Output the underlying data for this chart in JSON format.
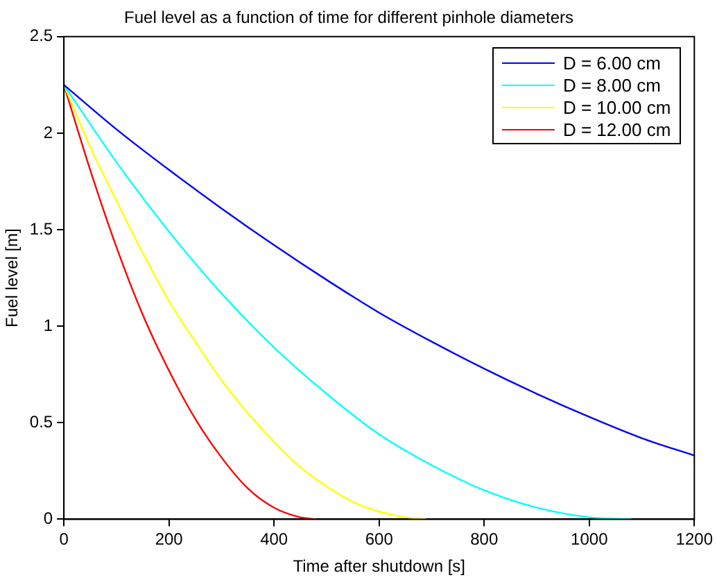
{
  "chart_data": {
    "type": "line",
    "title": "Fuel level as a function of time for different pinhole diameters",
    "xlabel": "Time after shutdown [s]",
    "ylabel": "Fuel level [m]",
    "xlim": [
      0,
      1200
    ],
    "xticks": [
      0,
      200,
      400,
      600,
      800,
      1000,
      1200
    ],
    "ylim": [
      0,
      2.5
    ],
    "yticks": [
      0,
      0.5,
      1,
      1.5,
      2,
      2.5
    ],
    "grid": false,
    "legend": "top right",
    "marker": "none",
    "line_style": "solid",
    "series": [
      {
        "name": "D = 6.00 cm",
        "color": "#0000ff",
        "x": [
          0,
          100,
          200,
          300,
          400,
          500,
          600,
          700,
          800,
          900,
          1000,
          1100,
          1200
        ],
        "values": [
          2.25,
          2.02,
          1.81,
          1.61,
          1.42,
          1.24,
          1.07,
          0.92,
          0.78,
          0.65,
          0.53,
          0.42,
          0.33
        ]
      },
      {
        "name": "D = 8.00 cm",
        "color": "#00ffff",
        "x": [
          0,
          100,
          200,
          300,
          400,
          500,
          600,
          700,
          800,
          900,
          1000,
          1080
        ],
        "values": [
          2.25,
          1.85,
          1.49,
          1.17,
          0.89,
          0.65,
          0.44,
          0.28,
          0.15,
          0.06,
          0.01,
          0
        ]
      },
      {
        "name": "D = 10.00 cm",
        "color": "#ffff00",
        "x": [
          0,
          50,
          100,
          150,
          200,
          250,
          300,
          350,
          400,
          450,
          500,
          550,
          600,
          650,
          690
        ],
        "values": [
          2.25,
          1.93,
          1.65,
          1.38,
          1.13,
          0.92,
          0.72,
          0.55,
          0.4,
          0.27,
          0.17,
          0.09,
          0.04,
          0.01,
          0
        ]
      },
      {
        "name": "D = 12.00 cm",
        "color": "#ff0000",
        "x": [
          0,
          50,
          100,
          150,
          200,
          250,
          300,
          350,
          400,
          450,
          480
        ],
        "values": [
          2.25,
          1.81,
          1.41,
          1.06,
          0.77,
          0.52,
          0.32,
          0.16,
          0.06,
          0.01,
          0
        ]
      }
    ]
  }
}
